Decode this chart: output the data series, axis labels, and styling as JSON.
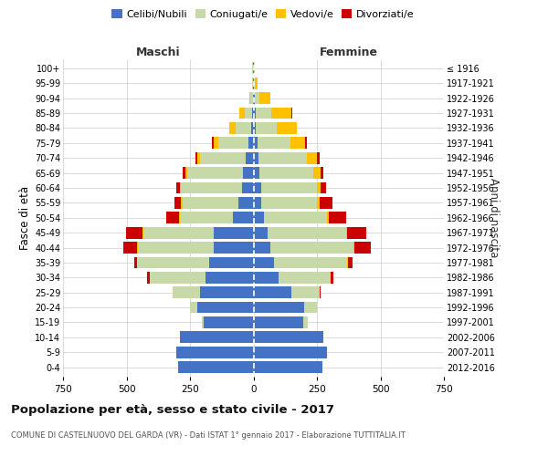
{
  "age_groups": [
    "0-4",
    "5-9",
    "10-14",
    "15-19",
    "20-24",
    "25-29",
    "30-34",
    "35-39",
    "40-44",
    "45-49",
    "50-54",
    "55-59",
    "60-64",
    "65-69",
    "70-74",
    "75-79",
    "80-84",
    "85-89",
    "90-94",
    "95-99",
    "100+"
  ],
  "birth_years": [
    "2012-2016",
    "2007-2011",
    "2002-2006",
    "1997-2001",
    "1992-1996",
    "1987-1991",
    "1982-1986",
    "1977-1981",
    "1972-1976",
    "1967-1971",
    "1962-1966",
    "1957-1961",
    "1952-1956",
    "1947-1951",
    "1942-1946",
    "1937-1941",
    "1932-1936",
    "1927-1931",
    "1922-1926",
    "1917-1921",
    "≤ 1916"
  ],
  "male": {
    "celibe": [
      295,
      305,
      290,
      195,
      220,
      210,
      190,
      175,
      155,
      155,
      80,
      60,
      45,
      40,
      30,
      20,
      10,
      5,
      3,
      2,
      2
    ],
    "coniugato": [
      0,
      0,
      0,
      10,
      30,
      110,
      220,
      285,
      300,
      280,
      210,
      220,
      240,
      220,
      180,
      120,
      60,
      30,
      8,
      3,
      2
    ],
    "vedovo": [
      0,
      0,
      0,
      0,
      0,
      0,
      0,
      0,
      2,
      2,
      3,
      5,
      5,
      8,
      10,
      15,
      25,
      20,
      5,
      2,
      0
    ],
    "divorziato": [
      0,
      0,
      0,
      0,
      0,
      0,
      10,
      10,
      55,
      65,
      50,
      25,
      15,
      10,
      10,
      10,
      0,
      0,
      0,
      0,
      0
    ]
  },
  "female": {
    "nubile": [
      270,
      290,
      275,
      195,
      200,
      150,
      100,
      80,
      65,
      55,
      40,
      30,
      30,
      25,
      20,
      15,
      10,
      10,
      5,
      2,
      2
    ],
    "coniugata": [
      0,
      0,
      0,
      20,
      50,
      110,
      205,
      290,
      330,
      310,
      250,
      220,
      220,
      210,
      190,
      130,
      80,
      60,
      20,
      5,
      2
    ],
    "vedova": [
      0,
      0,
      0,
      0,
      0,
      0,
      0,
      2,
      2,
      3,
      5,
      10,
      15,
      30,
      40,
      60,
      80,
      80,
      40,
      10,
      2
    ],
    "divorziata": [
      0,
      0,
      0,
      0,
      0,
      5,
      10,
      20,
      65,
      75,
      70,
      50,
      20,
      10,
      10,
      5,
      2,
      2,
      0,
      0,
      0
    ]
  },
  "colors": {
    "celibe": "#4472c4",
    "coniugato": "#c8d9a8",
    "vedovo": "#ffc000",
    "divorziato": "#cc0000"
  },
  "xlim": 750,
  "title": "Popolazione per età, sesso e stato civile - 2017",
  "subtitle": "COMUNE DI CASTELNUOVO DEL GARDA (VR) - Dati ISTAT 1° gennaio 2017 - Elaborazione TUTTITALIA.IT",
  "ylabel_left": "Fasce di età",
  "ylabel_right": "Anni di nascita",
  "xlabel_left": "Maschi",
  "xlabel_right": "Femmine",
  "background_color": "#ffffff",
  "grid_color": "#cccccc"
}
